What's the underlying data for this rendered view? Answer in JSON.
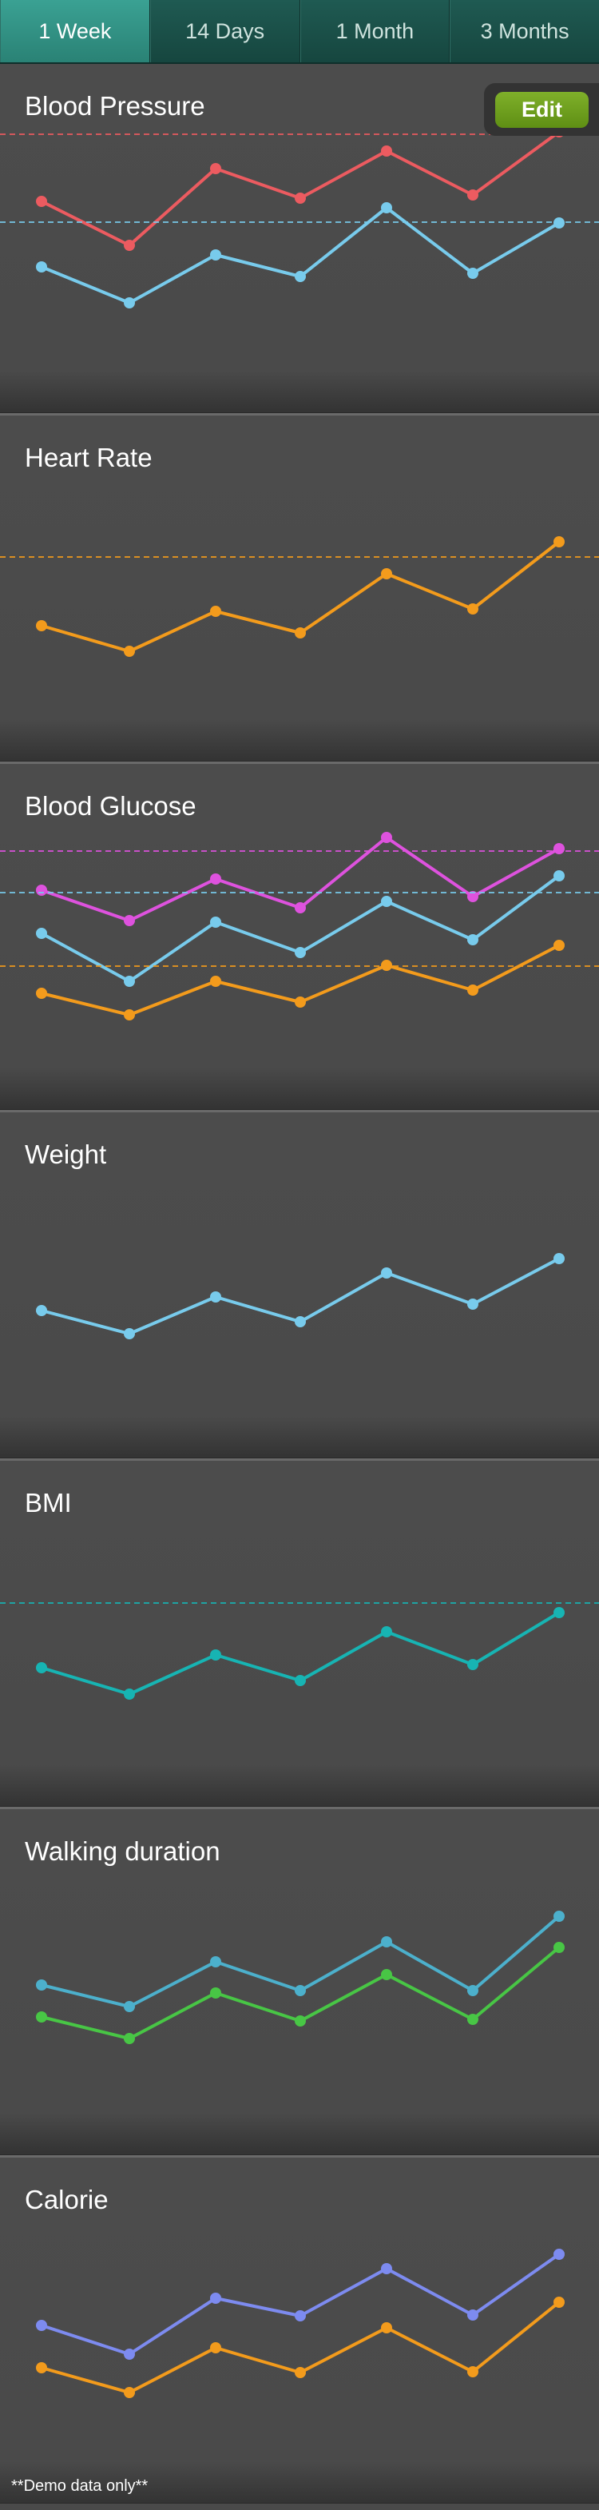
{
  "tabs": [
    "1 Week",
    "14 Days",
    "1 Month",
    "3 Months"
  ],
  "active_tab": 0,
  "edit_label": "Edit",
  "footer": "**Demo data only**",
  "charts": [
    {
      "title": "Blood Pressure",
      "chart_data": {
        "type": "line",
        "x": [
          1,
          2,
          3,
          4,
          5,
          6,
          7
        ],
        "series": [
          {
            "color": "#ec5b60",
            "values": [
              172,
              227,
              131,
              168,
              109,
              164,
              85
            ],
            "ref": 88
          },
          {
            "color": "#78cbec",
            "values": [
              254,
              299,
              239,
              266,
              180,
              262,
              199
            ],
            "ref": 198
          }
        ]
      }
    },
    {
      "title": "Heart Rate",
      "chart_data": {
        "type": "line",
        "x": [
          1,
          2,
          3,
          4,
          5,
          6,
          7
        ],
        "series": [
          {
            "color": "#f39b1c",
            "values": [
              263,
              295,
              245,
              272,
              198,
              242,
              158
            ],
            "ref": 177
          }
        ]
      }
    },
    {
      "title": "Blood Glucose",
      "chart_data": {
        "type": "line",
        "x": [
          1,
          2,
          3,
          4,
          5,
          6,
          7
        ],
        "series": [
          {
            "color": "#de52de",
            "values": [
              158,
              196,
              144,
              180,
              92,
              166,
              106
            ],
            "ref": 109
          },
          {
            "color": "#78cbec",
            "values": [
              212,
              272,
              198,
              236,
              172,
              220,
              140
            ],
            "ref": 161
          },
          {
            "color": "#f39b1c",
            "values": [
              287,
              314,
              272,
              298,
              252,
              283,
              227
            ],
            "ref": 253
          }
        ]
      }
    },
    {
      "title": "Weight",
      "chart_data": {
        "type": "line",
        "x": [
          1,
          2,
          3,
          4,
          5,
          6,
          7
        ],
        "series": [
          {
            "color": "#78cbec",
            "values": [
              248,
              277,
              231,
              262,
              201,
              240,
              183
            ]
          }
        ]
      }
    },
    {
      "title": "BMI",
      "chart_data": {
        "type": "line",
        "x": [
          1,
          2,
          3,
          4,
          5,
          6,
          7
        ],
        "series": [
          {
            "color": "#17b4b3",
            "values": [
              259,
              292,
              243,
              275,
              214,
              255,
              190
            ],
            "ref": 178
          }
        ]
      }
    },
    {
      "title": "Walking duration",
      "chart_data": {
        "type": "line",
        "x": [
          1,
          2,
          3,
          4,
          5,
          6,
          7
        ],
        "series": [
          {
            "color": "#4cb0cc",
            "values": [
              220,
              247,
              191,
              227,
              166,
              227,
              134
            ]
          },
          {
            "color": "#48c645",
            "values": [
              260,
              287,
              230,
              265,
              207,
              263,
              173
            ]
          }
        ]
      }
    },
    {
      "title": "Calorie",
      "chart_data": {
        "type": "line",
        "x": [
          1,
          2,
          3,
          4,
          5,
          6,
          7
        ],
        "series": [
          {
            "color": "#7d8bf0",
            "values": [
              210,
              246,
              176,
              198,
              139,
              197,
              121
            ]
          },
          {
            "color": "#f39b1c",
            "values": [
              263,
              294,
              238,
              269,
              213,
              268,
              181
            ]
          }
        ]
      }
    }
  ]
}
